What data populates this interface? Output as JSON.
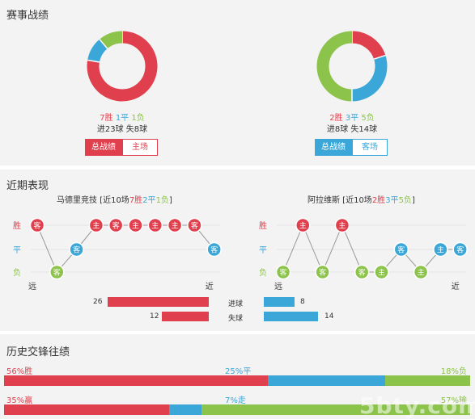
{
  "colors": {
    "win": "#e0404e",
    "draw": "#3aa7d8",
    "loss": "#8cc34a",
    "section_bg": "#f3f3f4"
  },
  "record": {
    "title": "赛事战绩",
    "home": {
      "win_text": "7胜",
      "draw_text": "1平",
      "loss_text": "1负",
      "goals_text": "进23球  失8球",
      "donut": {
        "win": 7,
        "draw": 1,
        "loss": 1
      },
      "buttons": {
        "active": "总战绩",
        "other": "主场"
      },
      "active_color": "#e0404e"
    },
    "away": {
      "win_text": "2胜",
      "draw_text": "3平",
      "loss_text": "5负",
      "goals_text": "进8球  失14球",
      "donut": {
        "win": 2,
        "draw": 3,
        "loss": 5
      },
      "buttons": {
        "active": "总战绩",
        "other": "客场"
      },
      "active_color": "#3aa7d8"
    }
  },
  "recent": {
    "title": "近期表现",
    "axis_labels": {
      "win": "胜",
      "draw": "平",
      "loss": "负",
      "far": "远",
      "near": "近"
    },
    "home": {
      "title_prefix": "马德里竞技 [近10场",
      "wins": "7胜",
      "draws": "2平",
      "losses": "1负",
      "title_suffix": "]",
      "matches": [
        {
          "result": "W",
          "venue": "客"
        },
        {
          "result": "L",
          "venue": "客"
        },
        {
          "result": "D",
          "venue": "客"
        },
        {
          "result": "W",
          "venue": "主"
        },
        {
          "result": "W",
          "venue": "客"
        },
        {
          "result": "W",
          "venue": "主"
        },
        {
          "result": "W",
          "venue": "主"
        },
        {
          "result": "W",
          "venue": "主"
        },
        {
          "result": "W",
          "venue": "客"
        },
        {
          "result": "D",
          "venue": "客"
        }
      ]
    },
    "away": {
      "title_prefix": "阿拉维斯 [近10场",
      "wins": "2胜",
      "draws": "3平",
      "losses": "5负",
      "title_suffix": "]",
      "matches": [
        {
          "result": "L",
          "venue": "客"
        },
        {
          "result": "W",
          "venue": "主"
        },
        {
          "result": "L",
          "venue": "客"
        },
        {
          "result": "W",
          "venue": "主"
        },
        {
          "result": "L",
          "venue": "客"
        },
        {
          "result": "L",
          "venue": "主"
        },
        {
          "result": "D",
          "venue": "客"
        },
        {
          "result": "L",
          "venue": "主"
        },
        {
          "result": "D",
          "venue": "主"
        },
        {
          "result": "D",
          "venue": "客"
        }
      ]
    },
    "goals": {
      "scored_label": "进球",
      "conceded_label": "失球",
      "home_scored": 26,
      "home_conceded": 12,
      "away_scored": 8,
      "away_conceded": 14
    }
  },
  "history": {
    "title": "历史交锋往绩",
    "row1": {
      "left_label": "56%胜",
      "mid_label": "25%平",
      "right_label": "18%负",
      "left": 56,
      "mid": 25,
      "right": 18
    },
    "row2": {
      "left_label": "35%赢",
      "mid_label": "7%走",
      "right_label": "57%输",
      "left": 35,
      "mid": 7,
      "right": 57
    }
  },
  "watermark": "5bty.com"
}
